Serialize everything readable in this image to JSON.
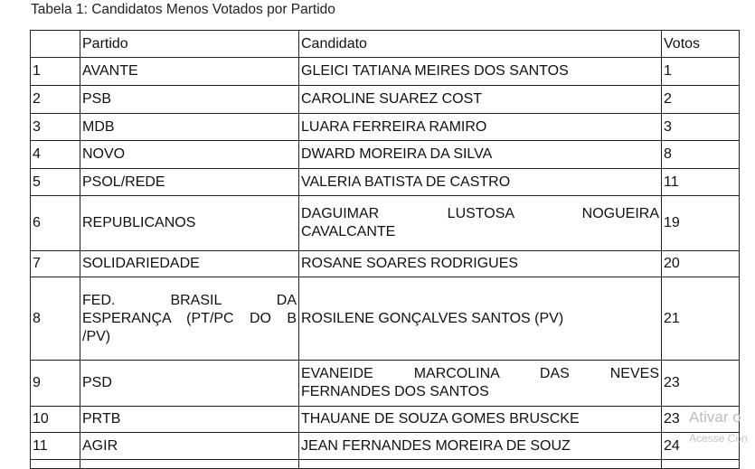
{
  "caption": "Tabela 1: Candidatos Menos Votados por Partido",
  "headers": [
    "",
    "Partido",
    "Candidato",
    "Votos"
  ],
  "rows": [
    {
      "n": "1",
      "partido": [
        "AVANTE"
      ],
      "candidato": [
        "GLEICI TATIANA MEIRES DOS SANTOS"
      ],
      "votos": "1"
    },
    {
      "n": "2",
      "partido": [
        "PSB"
      ],
      "candidato": [
        "CAROLINE SUAREZ COST"
      ],
      "votos": "2"
    },
    {
      "n": "3",
      "partido": [
        "MDB"
      ],
      "candidato": [
        "LUARA FERREIRA RAMIRO"
      ],
      "votos": "3"
    },
    {
      "n": "4",
      "partido": [
        "NOVO"
      ],
      "candidato": [
        "DWARD MOREIRA DA SILVA"
      ],
      "votos": "8"
    },
    {
      "n": "5",
      "partido": [
        "PSOL/REDE"
      ],
      "candidato": [
        "VALERIA BATISTA DE CASTRO"
      ],
      "votos": "11"
    },
    {
      "n": "6",
      "partido": [
        "REPUBLICANOS"
      ],
      "candidato": [
        "DAGUIMAR LUSTOSA NOGUEIRA",
        "CAVALCANTE"
      ],
      "votos": "19"
    },
    {
      "n": "7",
      "partido": [
        "SOLIDARIEDADE"
      ],
      "candidato": [
        "ROSANE SOARES RODRIGUES"
      ],
      "votos": "20"
    },
    {
      "n": "8",
      "partido": [
        "FED. BRASIL DA",
        "ESPERANÇA (PT/PC DO B",
        "/PV)"
      ],
      "candidato": [
        "ROSILENE GONÇALVES SANTOS (PV)"
      ],
      "votos": "21"
    },
    {
      "n": "9",
      "partido": [
        "PSD"
      ],
      "candidato": [
        "EVANEIDE MARCOLINA DAS NEVES",
        "FERNANDES DOS SANTOS"
      ],
      "votos": "23"
    },
    {
      "n": "10",
      "partido": [
        "PRTB"
      ],
      "candidato": [
        "THAUANE DE SOUZA GOMES BRUSCKE"
      ],
      "votos": "23"
    },
    {
      "n": "11",
      "partido": [
        "AGIR"
      ],
      "candidato": [
        "JEAN FERNANDES MOREIRA DE SOUZ"
      ],
      "votos": "24"
    }
  ],
  "watermark": {
    "line1": "Ativar o",
    "line2": "Acesse Con"
  }
}
